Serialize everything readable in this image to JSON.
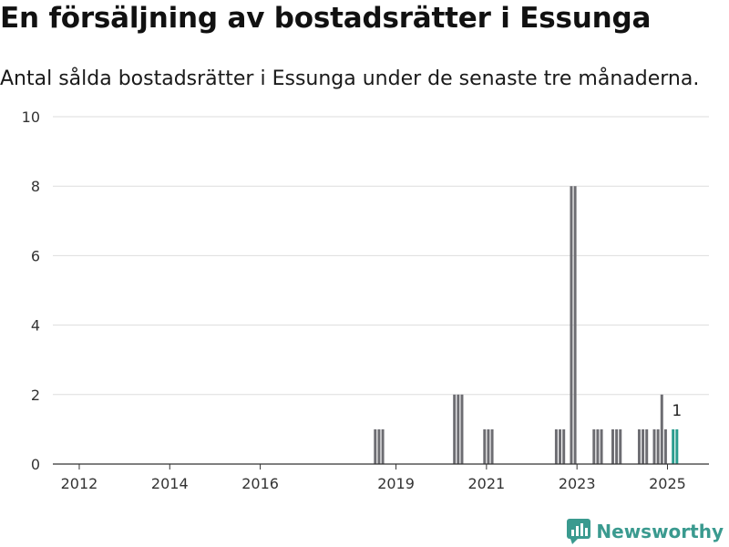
{
  "title": "En försäljning av bostadsrätter i Essunga",
  "subtitle": "Antal sålda bostadsrätter i Essunga under de senaste tre månaderna.",
  "brand": {
    "name": "Newsworthy",
    "icon": "newsworthy-logo-icon",
    "color": "#3a9a8f"
  },
  "colors": {
    "bar": "#6d6d72",
    "highlight": "#2a9d8f",
    "grid": "#dddddd",
    "axis": "#333333"
  },
  "chart_data": {
    "type": "bar",
    "x_unit": "month",
    "xlim": [
      "2011-06",
      "2025-12"
    ],
    "ylim": [
      0,
      10
    ],
    "y_ticks": [
      0,
      2,
      4,
      6,
      8,
      10
    ],
    "x_ticks": [
      "2012",
      "2014",
      "2016",
      "2019",
      "2021",
      "2023",
      "2025"
    ],
    "grid": true,
    "highlight_label": "1",
    "bars": [
      {
        "month": "2018-07",
        "value": 1
      },
      {
        "month": "2018-08",
        "value": 1
      },
      {
        "month": "2018-09",
        "value": 1
      },
      {
        "month": "2020-04",
        "value": 2
      },
      {
        "month": "2020-05",
        "value": 2
      },
      {
        "month": "2020-06",
        "value": 2
      },
      {
        "month": "2020-12",
        "value": 1
      },
      {
        "month": "2021-01",
        "value": 1
      },
      {
        "month": "2021-02",
        "value": 1
      },
      {
        "month": "2022-07",
        "value": 1
      },
      {
        "month": "2022-08",
        "value": 1
      },
      {
        "month": "2022-09",
        "value": 1
      },
      {
        "month": "2022-11",
        "value": 8
      },
      {
        "month": "2022-12",
        "value": 8
      },
      {
        "month": "2023-05",
        "value": 1
      },
      {
        "month": "2023-06",
        "value": 1
      },
      {
        "month": "2023-07",
        "value": 1
      },
      {
        "month": "2023-10",
        "value": 1
      },
      {
        "month": "2023-11",
        "value": 1
      },
      {
        "month": "2023-12",
        "value": 1
      },
      {
        "month": "2024-05",
        "value": 1
      },
      {
        "month": "2024-06",
        "value": 1
      },
      {
        "month": "2024-07",
        "value": 1
      },
      {
        "month": "2024-09",
        "value": 1
      },
      {
        "month": "2024-10",
        "value": 1
      },
      {
        "month": "2024-11",
        "value": 2
      },
      {
        "month": "2024-12",
        "value": 1
      },
      {
        "month": "2025-02",
        "value": 1,
        "highlight": true
      },
      {
        "month": "2025-03",
        "value": 1,
        "highlight": true
      }
    ]
  }
}
